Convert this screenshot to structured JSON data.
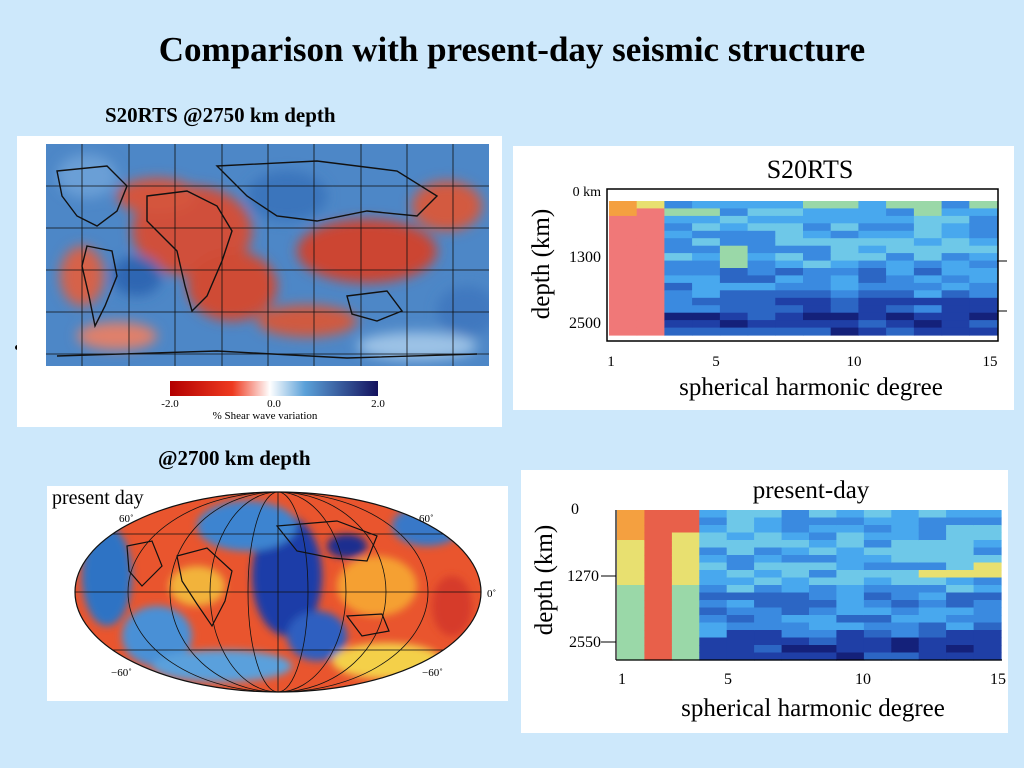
{
  "slide": {
    "title": "Comparison with present-day seismic structure",
    "caption_top": "S20RTS @2750 km depth",
    "caption_bottom": "@2700 km depth"
  },
  "map_top": {
    "colorbar_min": "-2.0",
    "colorbar_mid": "0.0",
    "colorbar_max": "2.0",
    "colorbar_label": "% Shear wave variation"
  },
  "map_bottom": {
    "label": "present day",
    "lat_north_left": "60˚",
    "lat_north_right": "60˚",
    "lat_south_left": "−60˚",
    "lat_south_right": "−60˚",
    "equator_label": "0˚"
  },
  "colors": {
    "background": "#cde8fb",
    "slow_red": "#d2462f",
    "fast_blue": "#2a66b8",
    "deep_blue": "#14217a"
  },
  "chart_data": [
    {
      "type": "heatmap",
      "title": "S20RTS",
      "xlabel": "spherical harmonic degree",
      "ylabel": "depth (km)",
      "x_ticks": [
        "1",
        "5",
        "10",
        "15"
      ],
      "y_ticks": [
        "0 km",
        "1300",
        "2500"
      ],
      "x_range": [
        1,
        15
      ],
      "y_range": [
        0,
        2891
      ]
    },
    {
      "type": "heatmap",
      "title": "present-day",
      "xlabel": "spherical harmonic degree",
      "ylabel": "depth (km)",
      "x_ticks": [
        "1",
        "5",
        "10",
        "15"
      ],
      "y_ticks": [
        "0",
        "1270",
        "2550"
      ],
      "x_range": [
        1,
        15
      ],
      "y_range": [
        0,
        2891
      ]
    }
  ]
}
